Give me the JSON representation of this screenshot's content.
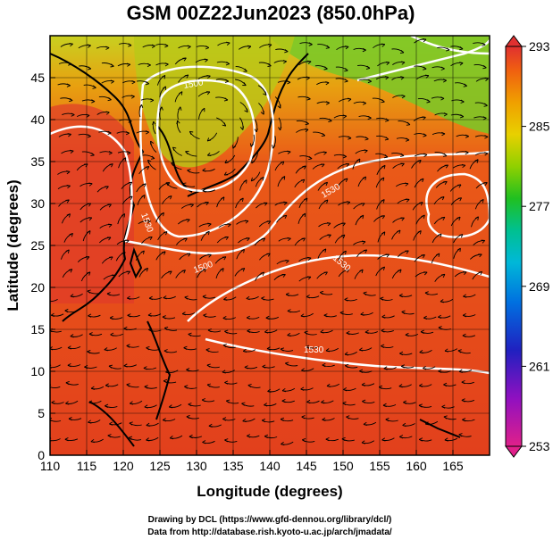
{
  "title": "GSM 00Z22Jun2023 (850.0hPa)",
  "x_axis": {
    "label": "Longitude (degrees)",
    "ticks": [
      "110",
      "115",
      "120",
      "125",
      "130",
      "135",
      "140",
      "145",
      "150",
      "155",
      "160",
      "165"
    ],
    "range": [
      110,
      170
    ]
  },
  "y_axis": {
    "label": "Latitude  (degrees)",
    "ticks": [
      "0",
      "5",
      "10",
      "15",
      "20",
      "25",
      "30",
      "35",
      "40",
      "45"
    ],
    "range": [
      0,
      50
    ]
  },
  "colorbar": {
    "ticks": [
      "293",
      "285",
      "277",
      "269",
      "261",
      "253"
    ],
    "range": [
      253,
      293
    ],
    "colors": [
      "#e0208a",
      "#b000b0",
      "#3020c0",
      "#0060e0",
      "#00a0e0",
      "#00c0c0",
      "#00c070",
      "#40c000",
      "#a0d000",
      "#e8d000",
      "#f0a000",
      "#f07000",
      "#e84010",
      "#e03030"
    ]
  },
  "contour_labels": [
    "1500",
    "1530",
    "1500",
    "1530",
    "1530",
    "1530"
  ],
  "credits": [
    "Drawing by DCL (https://www.gfd-dennou.org/library/dcl/)",
    "Data from http://database.rish.kyoto-u.ac.jp/arch/jmadata/"
  ],
  "map": {
    "background": "#e0421a",
    "land_color": "#000000",
    "contour_color": "#ffffff",
    "streamline_color": "#000000"
  }
}
